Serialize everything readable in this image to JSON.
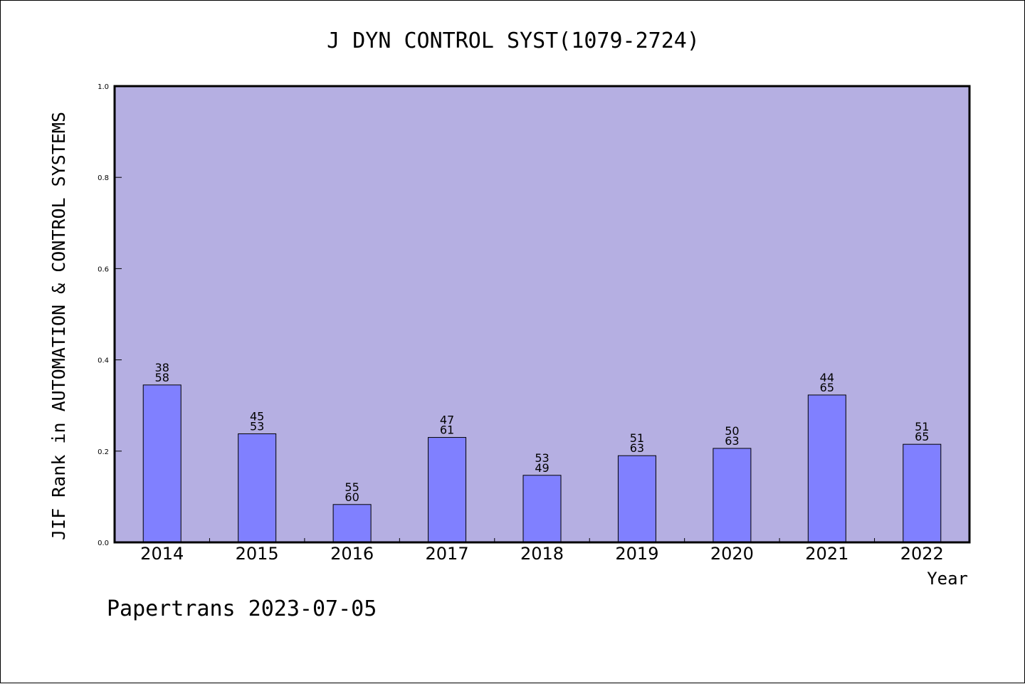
{
  "chart_data": {
    "type": "bar",
    "title": "J DYN CONTROL SYST(1079-2724)",
    "xlabel": "Year",
    "ylabel": "JIF Rank in AUTOMATION & CONTROL SYSTEMS",
    "ylim": [
      0,
      1.0
    ],
    "yticks": [
      "0.0",
      "0.2",
      "0.4",
      "0.6",
      "0.8",
      "1.0"
    ],
    "categories": [
      "2014",
      "2015",
      "2016",
      "2017",
      "2018",
      "2019",
      "2020",
      "2021",
      "2022"
    ],
    "values": [
      0.345,
      0.238,
      0.083,
      0.23,
      0.147,
      0.19,
      0.206,
      0.323,
      0.215
    ],
    "bar_labels_top": [
      "38",
      "45",
      "55",
      "47",
      "53",
      "51",
      "50",
      "44",
      "51"
    ],
    "bar_labels_bottom": [
      "58",
      "53",
      "60",
      "61",
      "49",
      "63",
      "63",
      "65",
      "65"
    ],
    "grid": false,
    "colors": {
      "plot_background": "#b5afe2",
      "bar": "#8080ff",
      "bar_edge": "#000000"
    }
  },
  "footer": "Papertrans 2023-07-05"
}
